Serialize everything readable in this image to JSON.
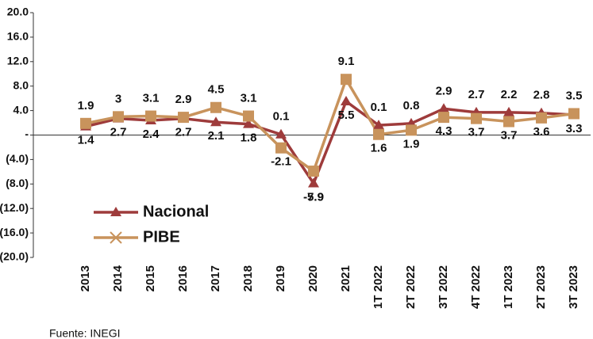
{
  "chart_data": {
    "type": "line",
    "categories": [
      "2013",
      "2014",
      "2015",
      "2016",
      "2017",
      "2018",
      "2019",
      "2020",
      "2021",
      "1T 2022",
      "2T 2022",
      "3T 2022",
      "4T 2022",
      "1T 2023",
      "2T 2023",
      "3T 2023"
    ],
    "series": [
      {
        "name": "Nacional",
        "color": "#9e3b3b",
        "values": [
          1.4,
          2.7,
          2.4,
          2.7,
          2.1,
          1.8,
          0.1,
          -7.9,
          5.5,
          1.6,
          1.9,
          4.3,
          3.7,
          3.7,
          3.6,
          3.3
        ]
      },
      {
        "name": "PIBE",
        "color": "#c8935c",
        "values": [
          1.9,
          3,
          3.1,
          2.9,
          4.5,
          3.1,
          -2.1,
          -5.9,
          9.1,
          0.1,
          0.8,
          2.9,
          2.7,
          2.2,
          2.8,
          3.5
        ]
      }
    ],
    "ylim": [
      -20,
      20
    ],
    "yticks": [
      {
        "value": 20,
        "label": "20.0"
      },
      {
        "value": 16,
        "label": "16.0"
      },
      {
        "value": 12,
        "label": "12.0"
      },
      {
        "value": 8,
        "label": "8.0"
      },
      {
        "value": 4,
        "label": "4.0"
      },
      {
        "value": 0,
        "label": "-"
      },
      {
        "value": -4,
        "label": "(4.0)"
      },
      {
        "value": -8,
        "label": "(8.0)"
      },
      {
        "value": -12,
        "label": "(12.0)"
      },
      {
        "value": -16,
        "label": "(16.0)"
      },
      {
        "value": -20,
        "label": "(20.0)"
      }
    ],
    "legend": "lower left",
    "source": "Fuente: INEGI"
  }
}
